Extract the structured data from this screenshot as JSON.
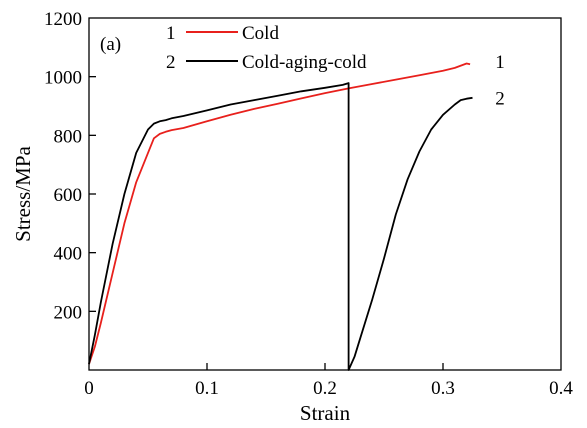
{
  "chart_data": {
    "type": "line",
    "panel_label": "(a)",
    "xlabel": "Strain",
    "ylabel": "Stress/MPa",
    "xlim": [
      0,
      0.4
    ],
    "ylim": [
      0,
      1200
    ],
    "x_ticks": [
      0,
      0.1,
      0.2,
      0.3,
      0.4
    ],
    "x_tick_labels": [
      "0",
      "0.1",
      "0.2",
      "0.3",
      "0.4"
    ],
    "y_ticks": [
      200,
      400,
      600,
      800,
      1000,
      1200
    ],
    "y_tick_labels": [
      "200",
      "400",
      "600",
      "800",
      "1000",
      "1200"
    ],
    "grid": false,
    "legend_position": "top-left",
    "series": [
      {
        "id": "1",
        "name": "Cold",
        "color": "#e8201c",
        "x": [
          0.0,
          0.005,
          0.01,
          0.02,
          0.03,
          0.04,
          0.05,
          0.055,
          0.06,
          0.065,
          0.07,
          0.08,
          0.1,
          0.12,
          0.14,
          0.16,
          0.18,
          0.2,
          0.22,
          0.24,
          0.26,
          0.28,
          0.3,
          0.31,
          0.32,
          0.323
        ],
        "y": [
          20,
          80,
          160,
          330,
          500,
          640,
          740,
          790,
          805,
          812,
          818,
          825,
          848,
          870,
          890,
          908,
          926,
          944,
          960,
          975,
          990,
          1005,
          1020,
          1030,
          1045,
          1042
        ]
      },
      {
        "id": "2",
        "name": "Cold-aging-cold",
        "color": "#000000",
        "x": [
          0.0,
          0.005,
          0.01,
          0.02,
          0.03,
          0.04,
          0.05,
          0.055,
          0.06,
          0.065,
          0.07,
          0.08,
          0.1,
          0.12,
          0.14,
          0.16,
          0.18,
          0.2,
          0.215,
          0.22,
          0.22,
          0.22,
          0.225,
          0.23,
          0.24,
          0.25,
          0.26,
          0.27,
          0.28,
          0.29,
          0.3,
          0.31,
          0.315,
          0.32,
          0.325
        ],
        "y": [
          20,
          120,
          230,
          430,
          600,
          740,
          820,
          840,
          848,
          852,
          858,
          866,
          885,
          905,
          920,
          935,
          950,
          962,
          972,
          978,
          970,
          0,
          45,
          110,
          240,
          380,
          530,
          650,
          745,
          820,
          870,
          905,
          920,
          925,
          928
        ]
      }
    ],
    "annotations": [
      {
        "text": "1",
        "x": 0.34,
        "y": 1050
      },
      {
        "text": "2",
        "x": 0.34,
        "y": 925
      }
    ]
  }
}
